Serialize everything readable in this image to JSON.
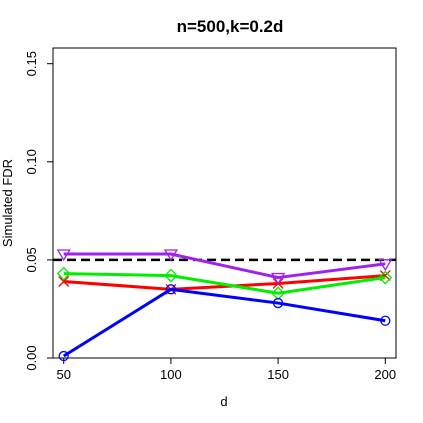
{
  "chart_data": {
    "type": "line",
    "title": "n=500,k=0.2d",
    "xlabel": "d",
    "ylabel": "Simulated FDR",
    "x": [
      50,
      100,
      150,
      200
    ],
    "xticks": [
      "50",
      "100",
      "150",
      "200"
    ],
    "yticks": [
      "0.00",
      "0.05",
      "0.10",
      "0.15"
    ],
    "xlim": [
      45,
      205
    ],
    "ylim": [
      0,
      0.158
    ],
    "grid": false,
    "reference_line": {
      "y": 0.05,
      "style": "dashed",
      "color": "#000000"
    },
    "series": [
      {
        "color": "#ff0000",
        "marker": "x",
        "values": [
          0.039,
          0.035,
          0.038,
          0.042
        ]
      },
      {
        "color": "#00ee00",
        "marker": "diamond",
        "values": [
          0.043,
          0.042,
          0.033,
          0.041
        ]
      },
      {
        "color": "#0000ff",
        "marker": "circle",
        "values": [
          0.001,
          0.035,
          0.028,
          0.019
        ]
      },
      {
        "color": "#a020f0",
        "marker": "triangle-down",
        "values": [
          0.053,
          0.053,
          0.041,
          0.048
        ]
      }
    ]
  }
}
